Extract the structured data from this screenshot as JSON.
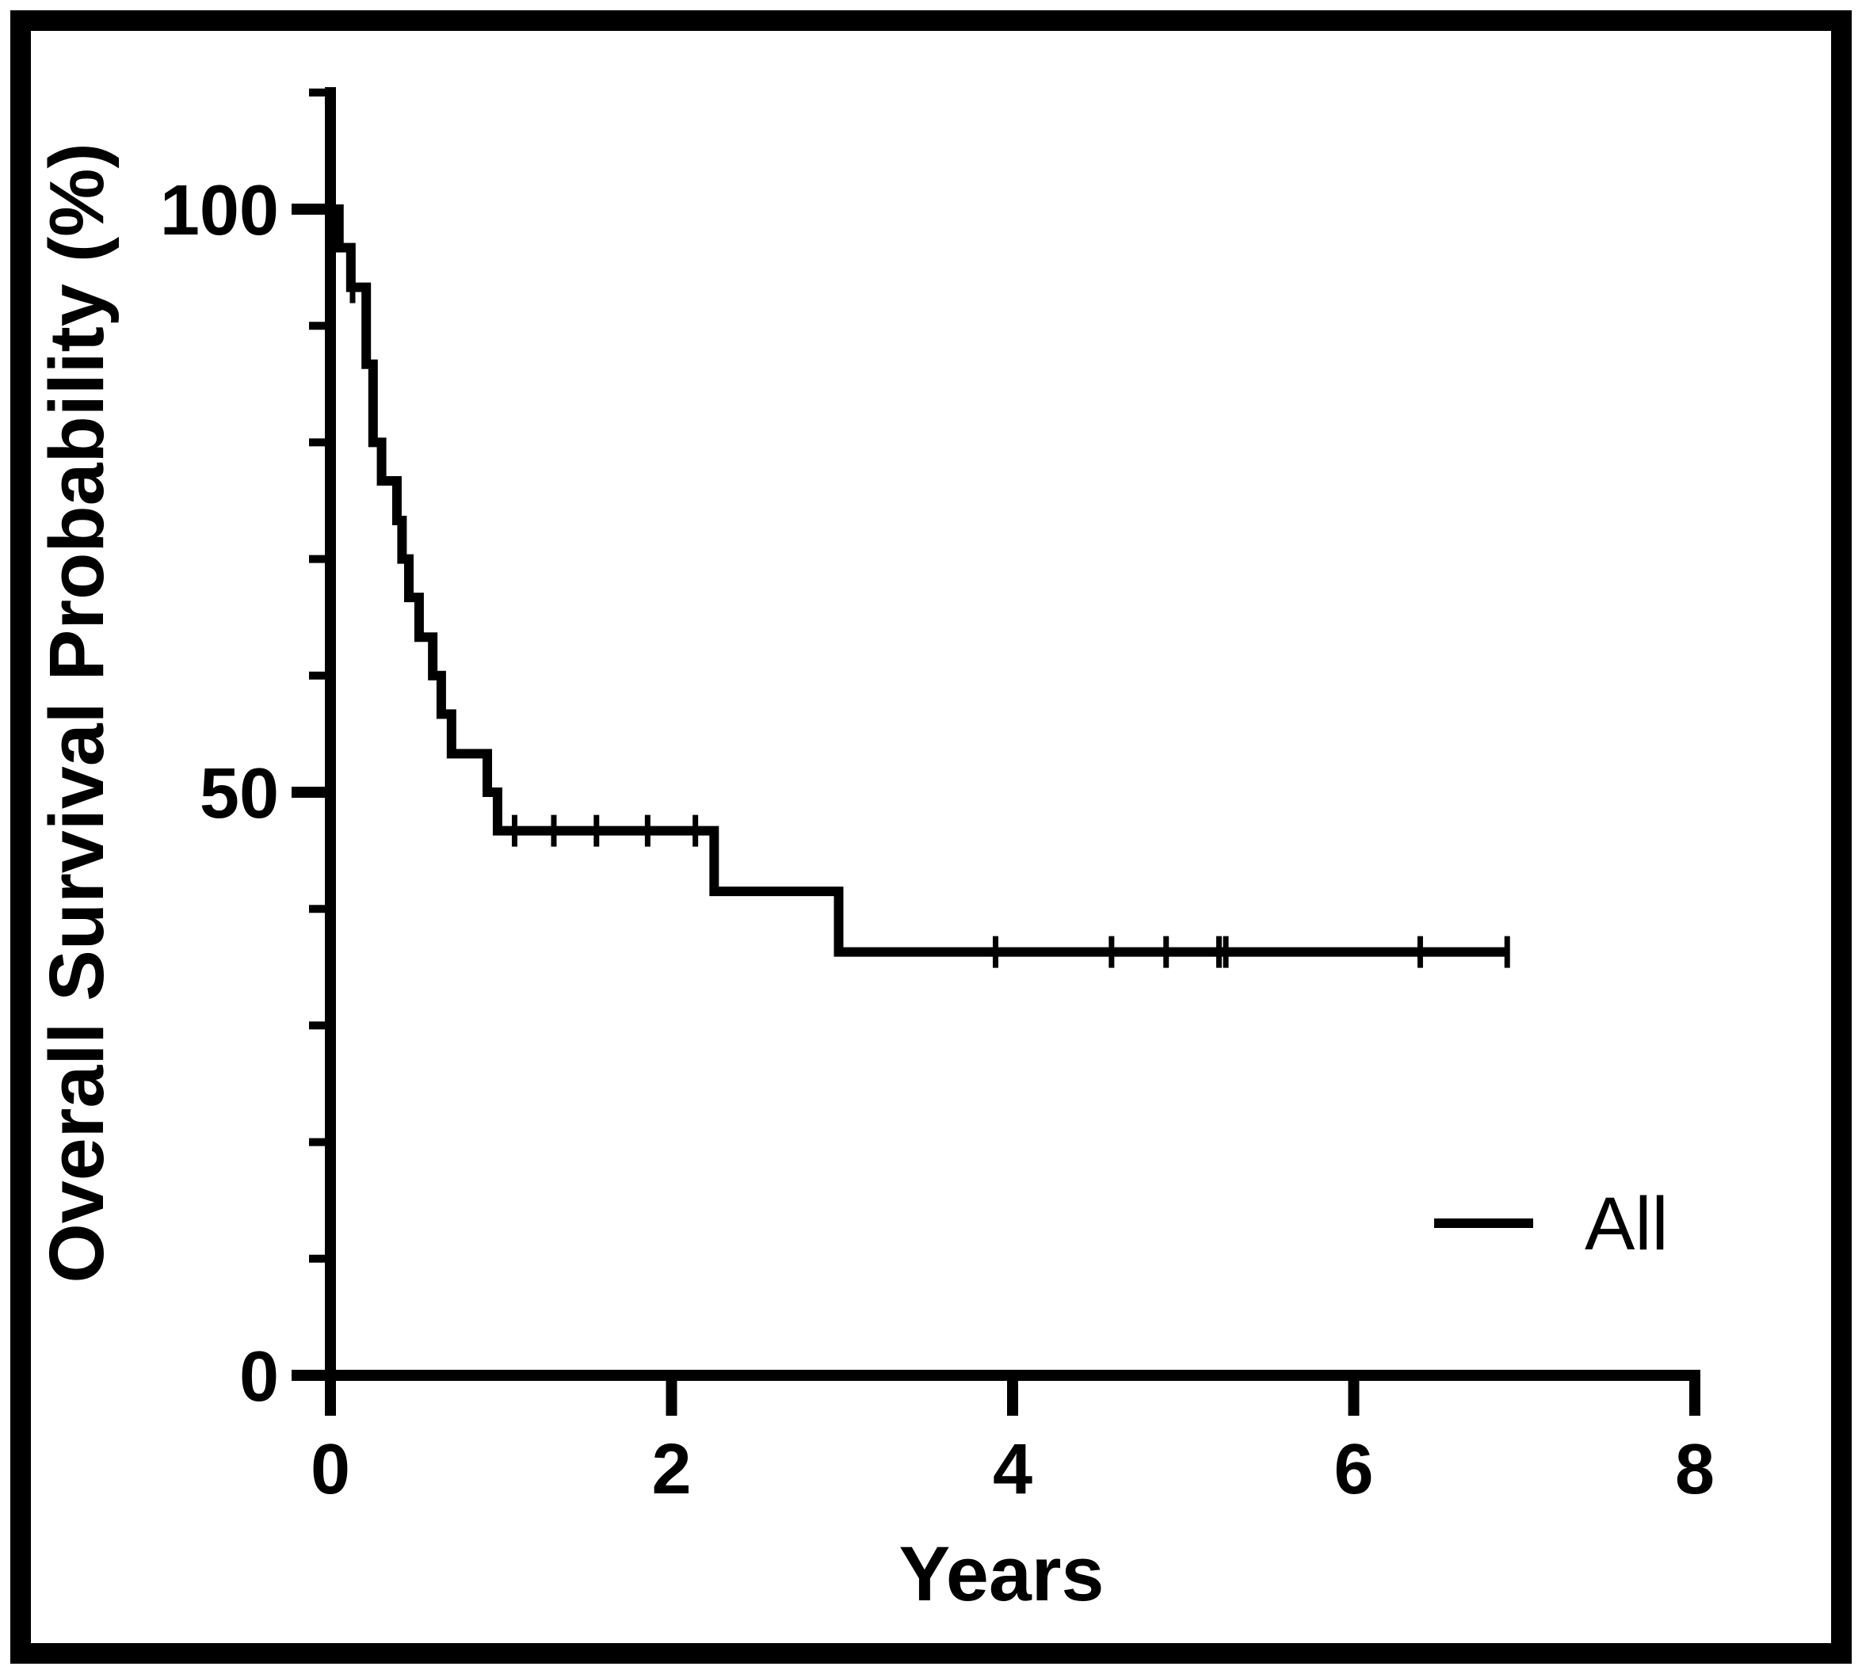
{
  "figure": {
    "background_color": "#ffffff",
    "line_color": "#000000"
  },
  "chart_data": {
    "type": "line",
    "subtype": "kaplan-meier-step",
    "title": "",
    "xlabel": "Years",
    "ylabel": "Overall Survival Probability (%)",
    "xlim": [
      0,
      8
    ],
    "ylim": [
      0,
      110
    ],
    "grid": false,
    "legend_position": "lower right",
    "x_major_ticks": [
      0,
      2,
      4,
      6,
      8
    ],
    "y_major_ticks": [
      0,
      50,
      100
    ],
    "y_minor_ticks": [
      10,
      20,
      30,
      40,
      60,
      70,
      80,
      90,
      110
    ],
    "legend": [
      {
        "label": "All"
      }
    ],
    "series": [
      {
        "name": "All",
        "start": [
          0,
          100
        ],
        "steps": [
          [
            0.05,
            96.7
          ],
          [
            0.12,
            93.3
          ],
          [
            0.21,
            86.7
          ],
          [
            0.25,
            80.0
          ],
          [
            0.3,
            76.7
          ],
          [
            0.39,
            73.3
          ],
          [
            0.42,
            70.0
          ],
          [
            0.46,
            66.7
          ],
          [
            0.52,
            63.3
          ],
          [
            0.6,
            60.0
          ],
          [
            0.65,
            56.7
          ],
          [
            0.71,
            53.3
          ],
          [
            0.92,
            50.0
          ],
          [
            0.98,
            46.7
          ],
          [
            2.25,
            41.5
          ],
          [
            2.98,
            36.3
          ]
        ],
        "end_time": 6.9,
        "censor_marks": [
          [
            0.13,
            93.3
          ],
          [
            1.08,
            46.7
          ],
          [
            1.31,
            46.7
          ],
          [
            1.56,
            46.7
          ],
          [
            1.86,
            46.7
          ],
          [
            2.14,
            46.7
          ],
          [
            3.9,
            36.3
          ],
          [
            4.58,
            36.3
          ],
          [
            4.9,
            36.3
          ],
          [
            5.21,
            36.3
          ],
          [
            5.25,
            36.3
          ],
          [
            6.39,
            36.3
          ],
          [
            6.9,
            36.3
          ]
        ]
      }
    ]
  }
}
